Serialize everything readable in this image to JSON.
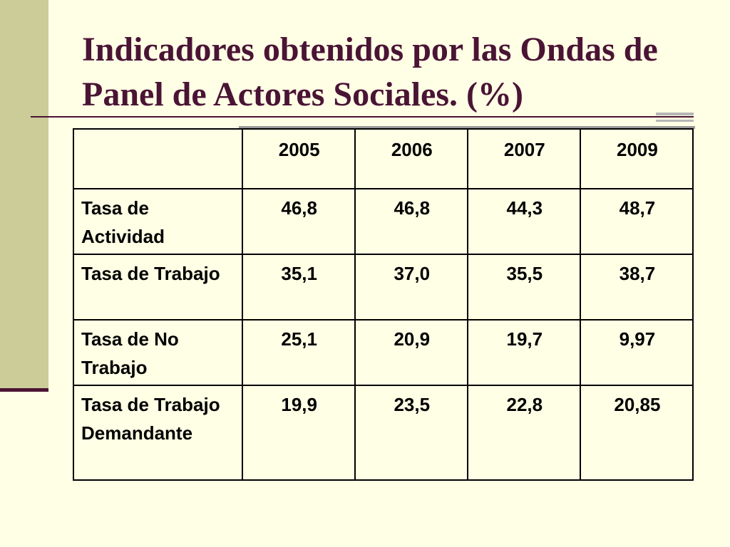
{
  "slide": {
    "title": "Indicadores obtenidos por las Ondas de Panel de Actores Sociales. (%)"
  },
  "table": {
    "corner": "",
    "columns": [
      "2005",
      "2006",
      "2007",
      "2009"
    ],
    "rows": [
      {
        "label": "Tasa de Actividad",
        "values": [
          "46,8",
          "46,8",
          "44,3",
          "48,7"
        ]
      },
      {
        "label": "Tasa de Trabajo",
        "values": [
          "35,1",
          "37,0",
          "35,5",
          "38,7"
        ]
      },
      {
        "label": "Tasa de No Trabajo",
        "values": [
          "25,1",
          "20,9",
          "19,7",
          "9,97"
        ]
      },
      {
        "label": "Tasa de Trabajo Demandante",
        "values": [
          "19,9",
          "23,5",
          "22,8",
          "20,85"
        ]
      }
    ]
  },
  "colors": {
    "background": "#FFFFE5",
    "side_bar": "#CCCC99",
    "title": "#4A1435"
  }
}
